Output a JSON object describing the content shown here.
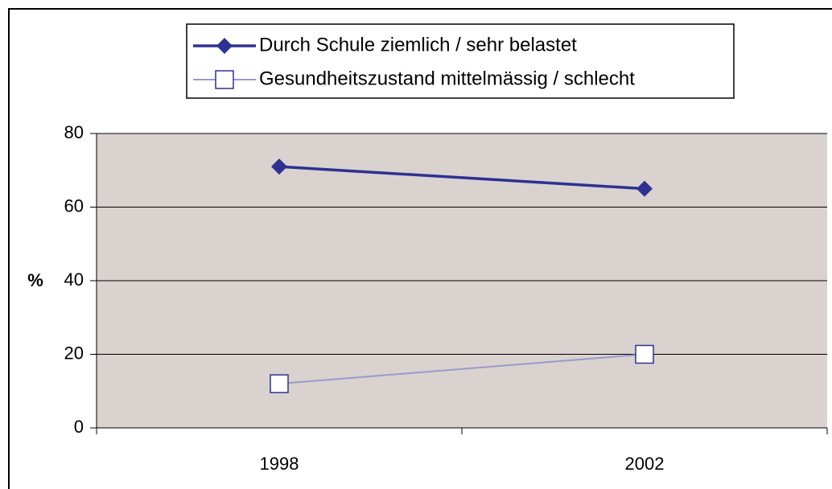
{
  "chart_data": {
    "type": "line",
    "categories": [
      "1998",
      "2002"
    ],
    "series": [
      {
        "name": "Durch Schule ziemlich / sehr belastet",
        "color": "#2e3192",
        "marker": "diamond",
        "values": [
          71,
          65
        ]
      },
      {
        "name": "Gesundheitszustand mittelmässig / schlecht",
        "color": "#9a9acc",
        "marker": "square",
        "values": [
          12,
          20
        ]
      }
    ],
    "y_label": "%",
    "ylim": [
      0,
      80
    ],
    "yticks": [
      0,
      20,
      40,
      60,
      80
    ],
    "grid": true,
    "legend": "top"
  }
}
